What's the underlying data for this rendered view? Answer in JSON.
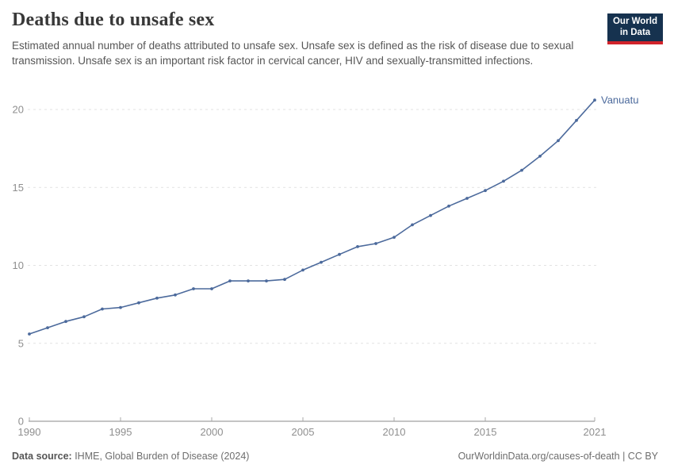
{
  "header": {
    "title": "Deaths due to unsafe sex",
    "subtitle": "Estimated annual number of deaths attributed to unsafe sex. Unsafe sex is defined as the risk of disease due to sexual transmission. Unsafe sex is an important risk factor in cervical cancer, HIV and sexually-transmitted infections.",
    "logo": {
      "line1": "Our World",
      "line2": "in Data",
      "bg_color": "#16324f",
      "accent_color": "#d1232a"
    }
  },
  "chart_data": {
    "type": "line",
    "title": "Deaths due to unsafe sex",
    "xlabel": "",
    "ylabel": "",
    "xlim": [
      1990,
      2021
    ],
    "ylim": [
      0,
      20
    ],
    "x_ticks": [
      1990,
      1995,
      2000,
      2005,
      2010,
      2015,
      2021
    ],
    "y_ticks": [
      0,
      5,
      10,
      15,
      20
    ],
    "grid": "horizontal-dashed",
    "legend_position": "end-of-line",
    "series": [
      {
        "name": "Vanuatu",
        "color": "#4c6a9c",
        "x": [
          1990,
          1991,
          1992,
          1993,
          1994,
          1995,
          1996,
          1997,
          1998,
          1999,
          2000,
          2001,
          2002,
          2003,
          2004,
          2005,
          2006,
          2007,
          2008,
          2009,
          2010,
          2011,
          2012,
          2013,
          2014,
          2015,
          2016,
          2017,
          2018,
          2019,
          2020,
          2021
        ],
        "values": [
          5.6,
          6.0,
          6.4,
          6.7,
          7.2,
          7.3,
          7.6,
          7.9,
          8.1,
          8.5,
          8.5,
          9.0,
          9.0,
          9.0,
          9.1,
          9.7,
          10.2,
          10.7,
          11.2,
          11.4,
          11.8,
          12.6,
          13.2,
          13.8,
          14.3,
          14.8,
          15.4,
          16.1,
          17.0,
          18.0,
          19.3,
          20.6
        ]
      }
    ]
  },
  "footer": {
    "source_label": "Data source:",
    "source_value": " IHME, Global Burden of Disease (2024)",
    "rights": "OurWorldinData.org/causes-of-death | CC BY"
  }
}
